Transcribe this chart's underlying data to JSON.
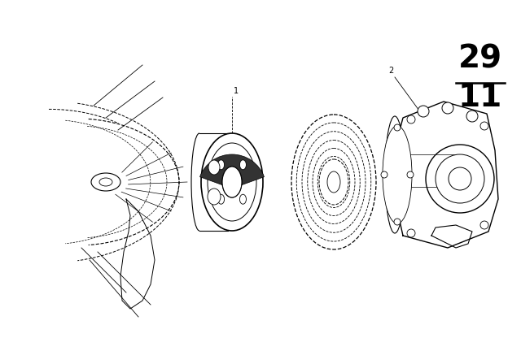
{
  "bg_color": "#ffffff",
  "line_color": "#000000",
  "fig_width": 6.4,
  "fig_height": 4.48,
  "dpi": 100,
  "label1_text": "1",
  "label2_text": "2",
  "number_top": "11",
  "number_bot": "29",
  "number_fontsize": 28
}
